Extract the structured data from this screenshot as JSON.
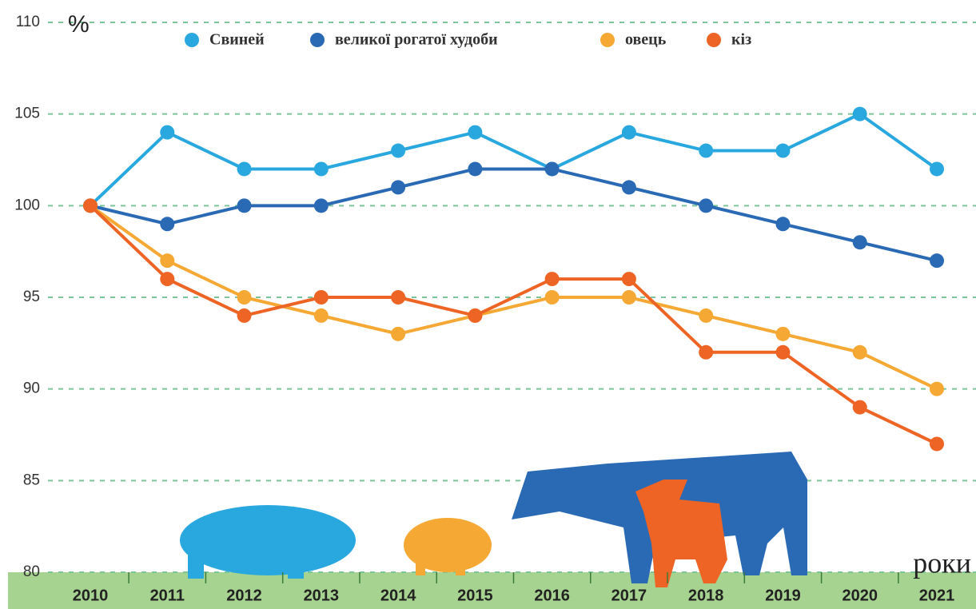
{
  "chart_data": {
    "type": "line",
    "y_label": "%",
    "x_label": "роки",
    "categories": [
      "2010",
      "2011",
      "2012",
      "2013",
      "2014",
      "2015",
      "2016",
      "2017",
      "2018",
      "2019",
      "2020",
      "2021"
    ],
    "series": [
      {
        "name": "Свиней",
        "color": "#29a8e0",
        "values": [
          100,
          104,
          102,
          102,
          103,
          104,
          102,
          104,
          103,
          103,
          105,
          102
        ]
      },
      {
        "name": "великої рогатої худоби",
        "color": "#2a6ab5",
        "values": [
          100,
          99,
          100,
          100,
          101,
          102,
          102,
          101,
          100,
          99,
          98,
          97
        ]
      },
      {
        "name": "овець",
        "color": "#f5a833",
        "values": [
          100,
          97,
          95,
          94,
          93,
          94,
          95,
          95,
          94,
          93,
          92,
          90
        ]
      },
      {
        "name": "кіз",
        "color": "#ee6424",
        "values": [
          100,
          96,
          94,
          95,
          95,
          94,
          96,
          96,
          92,
          92,
          89,
          87
        ]
      }
    ],
    "ylim": [
      80,
      110
    ],
    "yticks": [
      80,
      85,
      90,
      95,
      100,
      105,
      110
    ],
    "grid": true,
    "legend": "top"
  }
}
